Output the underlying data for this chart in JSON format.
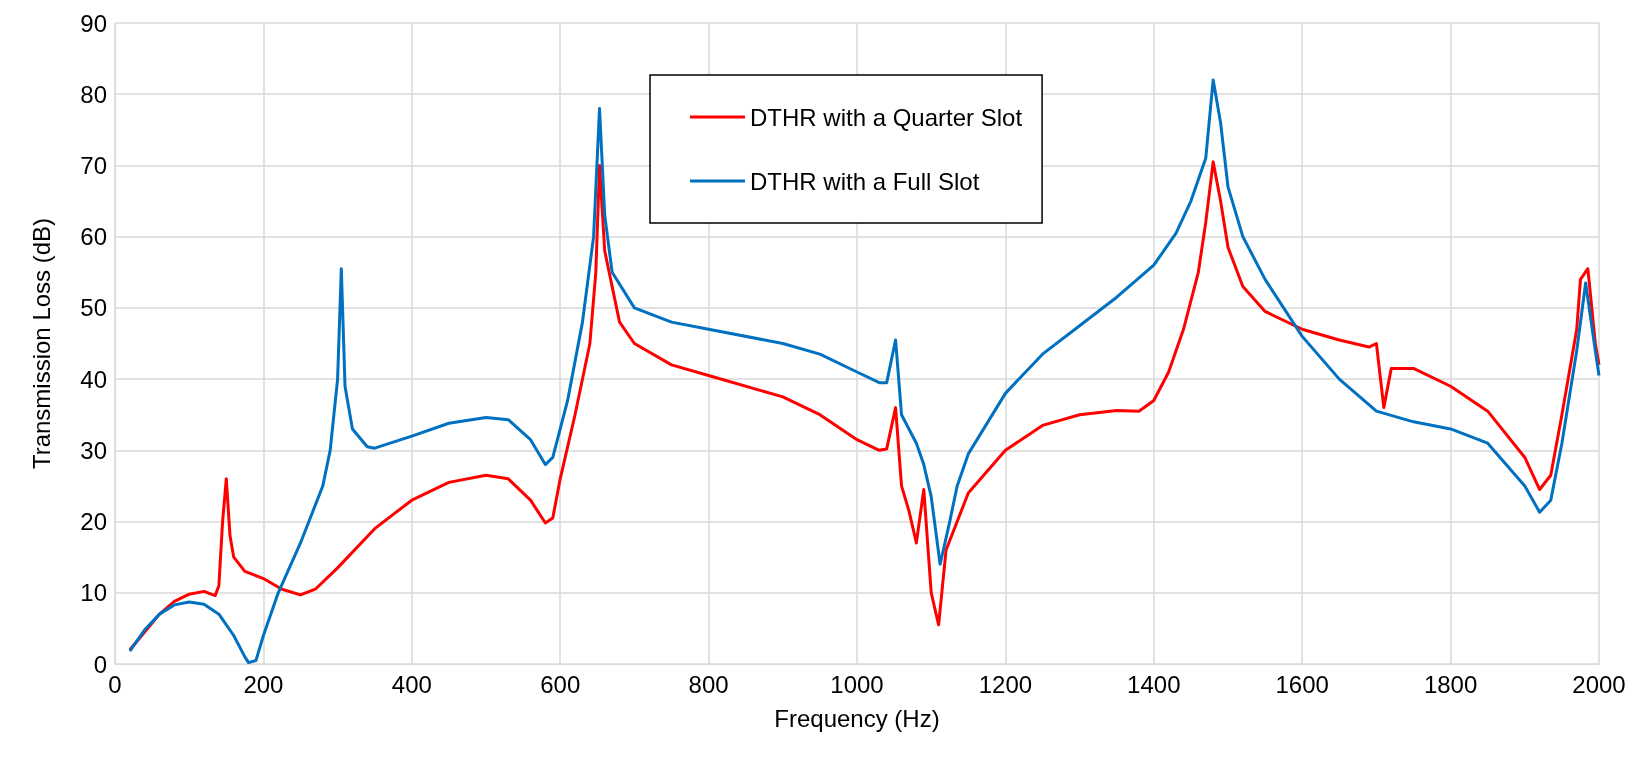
{
  "chart_data": {
    "type": "line",
    "xlabel": "Frequency (Hz)",
    "ylabel": "Transmission Loss (dB)",
    "xlim": [
      0,
      2000
    ],
    "xticks": [
      0,
      200,
      400,
      600,
      800,
      1000,
      1200,
      1400,
      1600,
      1800,
      2000
    ],
    "ylim": [
      0,
      90
    ],
    "yticks": [
      0,
      10,
      20,
      30,
      40,
      50,
      60,
      70,
      80,
      90
    ],
    "grid": true,
    "legend": "top",
    "marker": "none",
    "line_style": "solid",
    "series": [
      {
        "name": "DTHR with a Quarter Slot",
        "color": "#ff0000",
        "x": [
          20,
          40,
          60,
          80,
          100,
          120,
          135,
          140,
          145,
          150,
          155,
          160,
          175,
          200,
          225,
          250,
          270,
          300,
          350,
          400,
          450,
          500,
          530,
          560,
          580,
          590,
          600,
          620,
          640,
          648,
          653,
          660,
          680,
          700,
          750,
          800,
          900,
          950,
          1000,
          1030,
          1040,
          1052,
          1060,
          1070,
          1080,
          1090,
          1100,
          1110,
          1120,
          1150,
          1200,
          1250,
          1300,
          1350,
          1380,
          1400,
          1420,
          1440,
          1460,
          1470,
          1480,
          1490,
          1500,
          1520,
          1550,
          1600,
          1650,
          1690,
          1700,
          1710,
          1720,
          1750,
          1800,
          1850,
          1900,
          1920,
          1935,
          1950,
          1970,
          1975,
          1985,
          1995,
          2000
        ],
        "values": [
          2,
          4.5,
          7,
          8.8,
          9.8,
          10.2,
          9.6,
          11,
          20,
          26,
          18,
          15,
          13,
          12,
          10.5,
          9.7,
          10.5,
          13.5,
          19,
          23,
          25.5,
          26.5,
          26,
          23,
          19.8,
          20.5,
          26,
          35,
          45,
          55,
          70,
          58,
          48,
          45,
          42,
          40.5,
          37.5,
          35,
          31.5,
          30,
          30.2,
          36,
          25,
          21.5,
          17,
          24.5,
          10,
          5.5,
          16,
          24,
          30,
          33.5,
          35,
          35.6,
          35.5,
          37,
          41,
          47,
          55,
          62,
          70.5,
          65,
          58.5,
          53,
          49.5,
          47,
          45.5,
          44.5,
          45,
          36,
          41.5,
          41.5,
          39,
          35.5,
          29,
          24.5,
          26.5,
          35,
          47,
          54,
          55.5,
          45,
          42
        ]
      },
      {
        "name": "DTHR with a Full Slot",
        "color": "#0070c0",
        "x": [
          20,
          40,
          60,
          80,
          100,
          120,
          140,
          160,
          175,
          180,
          190,
          200,
          220,
          250,
          280,
          290,
          300,
          305,
          310,
          320,
          340,
          350,
          400,
          450,
          500,
          530,
          560,
          580,
          590,
          610,
          630,
          645,
          653,
          660,
          670,
          700,
          750,
          800,
          900,
          950,
          1000,
          1030,
          1040,
          1052,
          1060,
          1080,
          1090,
          1100,
          1112,
          1125,
          1135,
          1150,
          1200,
          1250,
          1300,
          1350,
          1400,
          1430,
          1450,
          1470,
          1480,
          1490,
          1500,
          1520,
          1550,
          1600,
          1650,
          1700,
          1750,
          1800,
          1850,
          1900,
          1920,
          1935,
          1950,
          1970,
          1982,
          1995,
          2000
        ],
        "values": [
          1.8,
          4.8,
          7,
          8.3,
          8.7,
          8.4,
          7,
          4,
          1,
          0.2,
          0.5,
          4,
          10,
          17,
          25,
          30,
          40,
          55.5,
          39,
          33,
          30.5,
          30.3,
          32,
          33.8,
          34.6,
          34.3,
          31.5,
          28,
          29,
          37,
          48,
          60,
          78,
          63,
          55,
          50,
          48,
          47,
          45,
          43.5,
          41,
          39.5,
          39.5,
          45.5,
          35,
          31,
          28,
          23.5,
          14,
          20,
          25,
          29.5,
          38,
          43.5,
          47.5,
          51.5,
          56,
          60.5,
          65,
          71,
          82,
          76,
          67,
          60,
          54,
          46,
          40,
          35.5,
          34,
          33,
          31,
          25,
          21.3,
          23,
          31,
          44,
          53.5,
          44,
          40.5
        ]
      }
    ]
  }
}
